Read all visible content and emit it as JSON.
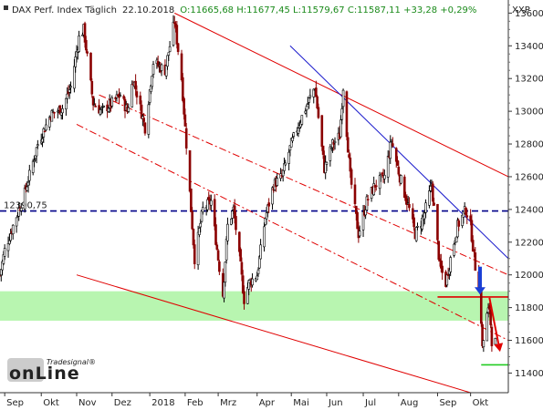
{
  "header": {
    "title": "DAX Perf. Index Täglich",
    "date": "22.10.2018",
    "quote": "O:11665,68 H:11677,45 L:11579,67 C:11587,11 +33,28 +0,29%"
  },
  "colors": {
    "up": "#000000",
    "down": "#8b0000",
    "channel": "#e00000",
    "trend": "#1a1acc",
    "level": "#000088",
    "support_zone": "#b8f5b0",
    "arrow_down": "#1a3fd6",
    "arrow_red": "#e00000",
    "target": "#22cc22"
  },
  "chart_data": {
    "type": "candlestick",
    "instrument": "DAX Perf. Index",
    "interval": "daily",
    "symbol": "XXP",
    "y_axis": {
      "range": [
        11280,
        13680
      ],
      "ticks": [
        11400,
        11600,
        11800,
        12000,
        12200,
        12400,
        12600,
        12800,
        13000,
        13200,
        13400,
        13600
      ],
      "position": "right"
    },
    "x_axis": {
      "start": "2017-08-28",
      "end": "2018-11-02",
      "month_labels": [
        {
          "label": "Sep",
          "date": "2017-09-01"
        },
        {
          "label": "Okt",
          "date": "2017-10-02"
        },
        {
          "label": "Nov",
          "date": "2017-11-01"
        },
        {
          "label": "Dez",
          "date": "2017-12-01"
        },
        {
          "label": "2018",
          "date": "2018-01-02"
        },
        {
          "label": "Feb",
          "date": "2018-02-01"
        },
        {
          "label": "Mrz",
          "date": "2018-03-01"
        },
        {
          "label": "Apr",
          "date": "2018-04-03"
        },
        {
          "label": "Mai",
          "date": "2018-05-02"
        },
        {
          "label": "Jun",
          "date": "2018-06-01"
        },
        {
          "label": "Jul",
          "date": "2018-07-02"
        },
        {
          "label": "Aug",
          "date": "2018-08-01"
        },
        {
          "label": "Sep",
          "date": "2018-09-03"
        },
        {
          "label": "Okt",
          "date": "2018-10-01"
        }
      ]
    },
    "price_path": [
      [
        "2017-08-28",
        12000
      ],
      [
        "2017-09-01",
        12150
      ],
      [
        "2017-09-08",
        12300
      ],
      [
        "2017-09-18",
        12500
      ],
      [
        "2017-09-29",
        12800
      ],
      [
        "2017-10-10",
        12980
      ],
      [
        "2017-10-20",
        13020
      ],
      [
        "2017-10-27",
        13150
      ],
      [
        "2017-11-03",
        13450
      ],
      [
        "2017-11-07",
        13500
      ],
      [
        "2017-11-15",
        13050
      ],
      [
        "2017-11-22",
        13000
      ],
      [
        "2017-12-01",
        13050
      ],
      [
        "2017-12-08",
        13100
      ],
      [
        "2017-12-14",
        13000
      ],
      [
        "2017-12-19",
        13200
      ],
      [
        "2017-12-29",
        12900
      ],
      [
        "2018-01-05",
        13300
      ],
      [
        "2018-01-15",
        13250
      ],
      [
        "2018-01-23",
        13550
      ],
      [
        "2018-01-29",
        13200
      ],
      [
        "2018-02-02",
        12800
      ],
      [
        "2018-02-06",
        12400
      ],
      [
        "2018-02-09",
        12100
      ],
      [
        "2018-02-16",
        12400
      ],
      [
        "2018-02-23",
        12450
      ],
      [
        "2018-03-01",
        12100
      ],
      [
        "2018-03-05",
        11880
      ],
      [
        "2018-03-09",
        12300
      ],
      [
        "2018-03-14",
        12400
      ],
      [
        "2018-03-20",
        12050
      ],
      [
        "2018-03-23",
        11850
      ],
      [
        "2018-03-27",
        11950
      ],
      [
        "2018-04-03",
        12000
      ],
      [
        "2018-04-10",
        12350
      ],
      [
        "2018-04-17",
        12550
      ],
      [
        "2018-04-24",
        12600
      ],
      [
        "2018-05-02",
        12800
      ],
      [
        "2018-05-10",
        12950
      ],
      [
        "2018-05-16",
        13050
      ],
      [
        "2018-05-22",
        13150
      ],
      [
        "2018-05-30",
        12650
      ],
      [
        "2018-06-06",
        12800
      ],
      [
        "2018-06-12",
        12850
      ],
      [
        "2018-06-15",
        13150
      ],
      [
        "2018-06-21",
        12600
      ],
      [
        "2018-06-28",
        12250
      ],
      [
        "2018-07-05",
        12450
      ],
      [
        "2018-07-12",
        12550
      ],
      [
        "2018-07-20",
        12600
      ],
      [
        "2018-07-26",
        12820
      ],
      [
        "2018-08-02",
        12600
      ],
      [
        "2018-08-10",
        12400
      ],
      [
        "2018-08-15",
        12250
      ],
      [
        "2018-08-22",
        12350
      ],
      [
        "2018-08-29",
        12550
      ],
      [
        "2018-09-05",
        12050
      ],
      [
        "2018-09-10",
        11950
      ],
      [
        "2018-09-14",
        12100
      ],
      [
        "2018-09-20",
        12300
      ],
      [
        "2018-09-27",
        12400
      ],
      [
        "2018-10-01",
        12300
      ],
      [
        "2018-10-05",
        12050
      ],
      [
        "2018-10-09",
        11900
      ],
      [
        "2018-10-11",
        11550
      ],
      [
        "2018-10-15",
        11750
      ],
      [
        "2018-10-17",
        11800
      ],
      [
        "2018-10-19",
        11600
      ],
      [
        "2018-10-22",
        11587
      ]
    ],
    "lines": [
      {
        "name": "upper-channel",
        "style": "solid",
        "color": "channel",
        "from": [
          "2018-01-23",
          13600
        ],
        "to": [
          "2018-11-02",
          12600
        ]
      },
      {
        "name": "mid-channel-1",
        "style": "dashdot",
        "color": "channel",
        "from": [
          "2017-11-01",
          12920
        ],
        "to": [
          "2018-11-02",
          11600
        ]
      },
      {
        "name": "mid-channel-2",
        "style": "dashdot",
        "color": "channel",
        "from": [
          "2017-11-20",
          13100
        ],
        "to": [
          "2018-11-02",
          12000
        ]
      },
      {
        "name": "lower-channel",
        "style": "solid",
        "color": "channel",
        "from": [
          "2017-11-01",
          12000
        ],
        "to": [
          "2018-10-01",
          11280
        ]
      },
      {
        "name": "blue-trendline",
        "style": "solid",
        "color": "trend",
        "from": [
          "2018-05-01",
          13400
        ],
        "to": [
          "2018-11-02",
          12100
        ]
      },
      {
        "name": "level-12390",
        "style": "dashed",
        "color": "level",
        "value": 12390.75,
        "label": "12390,75"
      },
      {
        "name": "red-resistance",
        "style": "solid",
        "color": "channel",
        "value": 11865,
        "from_date": "2018-09-03",
        "to_date": "2018-11-02"
      },
      {
        "name": "green-target",
        "style": "solid",
        "color": "target",
        "value": 11450,
        "from_date": "2018-10-10",
        "to_date": "2018-11-02"
      }
    ],
    "zones": [
      {
        "name": "support-zone",
        "from": 11720,
        "to": 11900,
        "color": "support_zone"
      }
    ],
    "arrows": [
      {
        "name": "blue-down-arrow",
        "color": "arrow_down",
        "date": "2018-10-09",
        "from": 12050,
        "to": 11880
      },
      {
        "name": "red-down-arrow",
        "color": "arrow_red",
        "from": [
          "2018-10-17",
          11860
        ],
        "to": [
          "2018-10-26",
          11530
        ]
      }
    ]
  },
  "watermark": {
    "brand_small": "Tradesignal®",
    "brand_main": "onLine"
  }
}
